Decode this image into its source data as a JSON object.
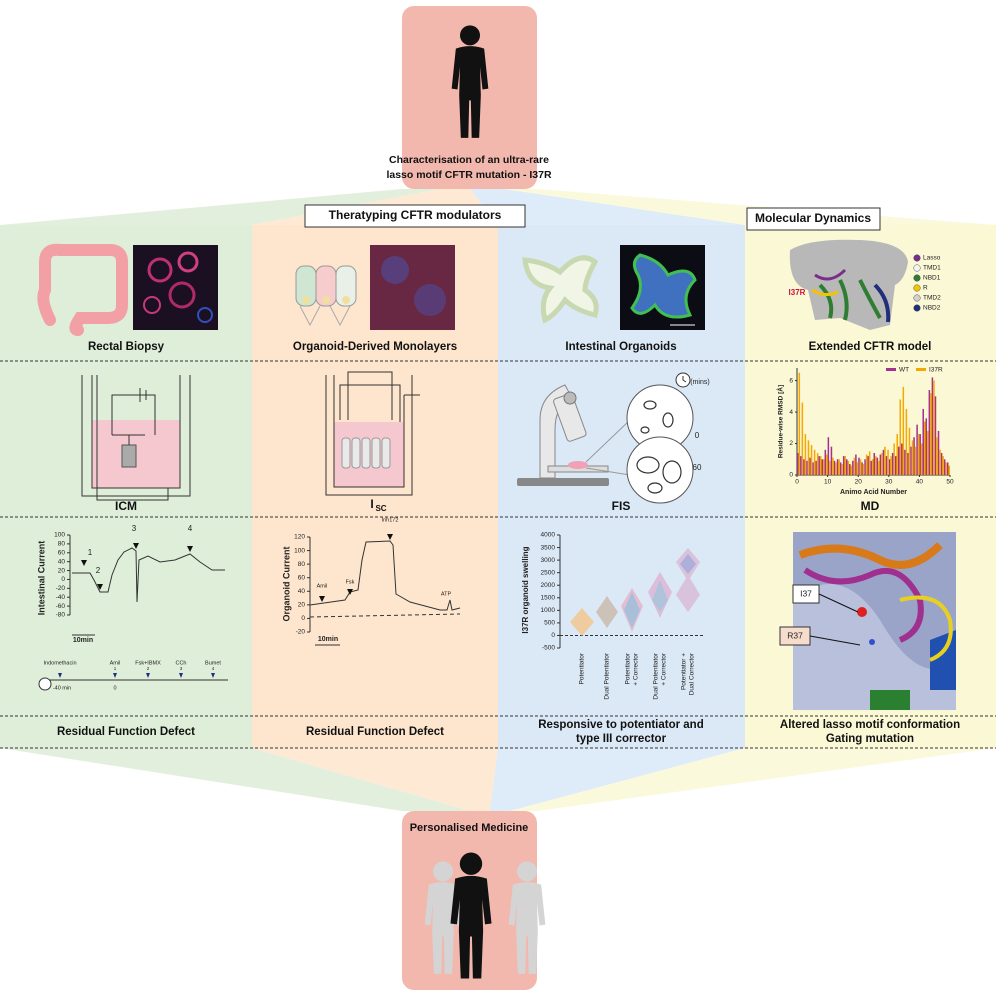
{
  "header": {
    "title_lines": [
      "Characterisation of an ultra-rare",
      "lasso motif CFTR mutation - I37R"
    ]
  },
  "sections": {
    "theratyping": "Theratyping CFTR modulators",
    "molecular_dynamics": "Molecular Dynamics"
  },
  "columns": [
    {
      "sample": "Rectal Biopsy",
      "assay": "ICM",
      "result_lines": [
        "Residual Function Defect"
      ]
    },
    {
      "sample": "Organoid-Derived Monolayers",
      "assay": "I",
      "assay_subscript": "SC",
      "result_lines": [
        "Residual Function Defect"
      ]
    },
    {
      "sample": "Intestinal Organoids",
      "assay": "FIS",
      "result_lines": [
        "Responsive to potentiator and",
        "type III corrector"
      ]
    },
    {
      "sample": "Extended CFTR model",
      "assay": "MD",
      "result_lines": [
        "Altered lasso motif conformation",
        "Gating mutation"
      ]
    }
  ],
  "structure": {
    "mutation_label": "I37R",
    "legend": [
      {
        "name": "Lasso",
        "color": "#7b2d8e"
      },
      {
        "name": "TMD1",
        "color": "#f4f4f4"
      },
      {
        "name": "NBD1",
        "color": "#2e7d32"
      },
      {
        "name": "R",
        "color": "#f2c500"
      },
      {
        "name": "TMD2",
        "color": "#d0d0d0"
      },
      {
        "name": "NBD2",
        "color": "#1f2f7a"
      }
    ]
  },
  "fis": {
    "unit": "(mins)",
    "times": [
      "0",
      "60"
    ]
  },
  "md_chart": {
    "y_label": "Residue-wise RMSD [Å]",
    "x_label": "Animo Acid Number",
    "xlim": [
      0,
      50
    ],
    "ylim": [
      0,
      6.8
    ],
    "xticks": [
      0,
      10,
      20,
      30,
      40,
      50
    ],
    "yticks": [
      0,
      2,
      4,
      6
    ],
    "series": [
      {
        "name": "WT",
        "color": "#a3338f",
        "values": [
          1.4,
          1.2,
          1.0,
          0.9,
          1.1,
          0.8,
          0.9,
          1.2,
          1.0,
          1.6,
          2.4,
          1.8,
          0.9,
          1.0,
          0.8,
          1.2,
          1.0,
          0.7,
          0.9,
          1.3,
          1.1,
          0.8,
          1.0,
          1.2,
          0.9,
          1.4,
          1.1,
          1.3,
          1.6,
          1.2,
          1.0,
          1.4,
          1.2,
          1.8,
          2.0,
          1.6,
          1.4,
          1.8,
          2.4,
          3.2,
          2.6,
          4.2,
          3.6,
          5.4,
          6.2,
          5.0,
          2.8,
          1.4,
          1.0,
          0.8
        ]
      },
      {
        "name": "I37R",
        "color": "#f5a800",
        "values": [
          6.5,
          4.6,
          2.6,
          2.2,
          1.9,
          1.6,
          1.4,
          1.2,
          1.0,
          1.3,
          0.9,
          1.1,
          0.8,
          1.0,
          0.7,
          1.2,
          0.9,
          0.6,
          1.1,
          0.8,
          1.0,
          0.7,
          1.3,
          1.5,
          1.0,
          1.2,
          0.9,
          1.4,
          1.8,
          1.6,
          1.2,
          2.0,
          2.6,
          4.8,
          5.6,
          4.2,
          3.0,
          2.2,
          1.8,
          2.6,
          2.0,
          3.4,
          2.8,
          5.2,
          6.0,
          2.4,
          1.6,
          1.2,
          0.8,
          0.6
        ]
      }
    ]
  },
  "icm_chart": {
    "y_label": "Intestinal Current",
    "yticks": [
      100,
      80,
      60,
      40,
      20,
      0,
      -20,
      -40,
      -60,
      -80
    ],
    "markers": [
      "1",
      "2",
      "3",
      "4"
    ],
    "scale": "10min",
    "timeline": {
      "events": [
        "Indomethacin",
        "Amil",
        "Fsk+IBMX",
        "CCh",
        "Bumet"
      ],
      "event_numbers": [
        "1",
        "2",
        "3",
        "4"
      ],
      "start": "-40 min",
      "zero": "0"
    }
  },
  "isc_chart": {
    "y_label": "Organoid Current",
    "yticks": [
      120,
      100,
      80,
      60,
      40,
      20,
      0,
      -20
    ],
    "events": [
      "Amil",
      "Fsk",
      "Inh172",
      "ATP"
    ],
    "scale": "10min"
  },
  "swelling_chart": {
    "y_label": "I37R organoid swelling",
    "yticks": [
      4000,
      3500,
      3000,
      2500,
      2000,
      1500,
      1000,
      500,
      0,
      -500
    ],
    "categories": [
      [
        "Potentiator"
      ],
      [
        "Dual Potentiator"
      ],
      [
        "Potentiator",
        "+ Corrector"
      ],
      [
        "Dual Potentiator",
        "+ Corrector"
      ],
      [
        "Potentiator +",
        "Dual Corrector"
      ]
    ]
  },
  "residues": [
    "I37",
    "R37"
  ],
  "footer": {
    "title": "Personalised Medicine"
  }
}
